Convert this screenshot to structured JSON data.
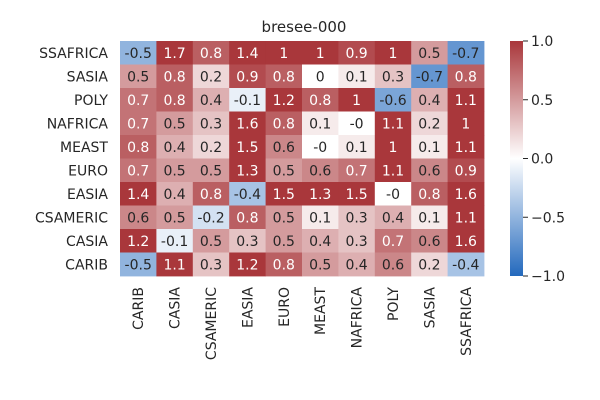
{
  "chart_data": {
    "type": "heatmap",
    "title": "bresee-000",
    "xlabel": "",
    "ylabel": "",
    "rows": [
      "SSAFRICA",
      "SASIA",
      "POLY",
      "NAFRICA",
      "MEAST",
      "EURO",
      "EASIA",
      "CSAMERIC",
      "CASIA",
      "CARIB"
    ],
    "columns": [
      "CARIB",
      "CASIA",
      "CSAMERIC",
      "EASIA",
      "EURO",
      "MEAST",
      "NAFRICA",
      "POLY",
      "SASIA",
      "SSAFRICA"
    ],
    "values": [
      [
        -0.5,
        1.7,
        0.8,
        1.4,
        1,
        1,
        0.9,
        1,
        0.5,
        -0.7
      ],
      [
        0.5,
        0.8,
        0.2,
        0.9,
        0.8,
        0,
        0.1,
        0.3,
        -0.7,
        0.8
      ],
      [
        0.7,
        0.8,
        0.4,
        -0.1,
        1.2,
        0.8,
        1,
        -0.6,
        0.4,
        1.1
      ],
      [
        0.7,
        0.5,
        0.3,
        1.6,
        0.8,
        0.1,
        "-0",
        1.1,
        0.2,
        1
      ],
      [
        0.8,
        0.4,
        0.2,
        1.5,
        0.6,
        "-0",
        0.1,
        1,
        0.1,
        1.1
      ],
      [
        0.7,
        0.5,
        0.5,
        1.3,
        0.5,
        0.6,
        0.7,
        1.1,
        0.6,
        0.9
      ],
      [
        1.4,
        0.4,
        0.8,
        -0.4,
        1.5,
        1.3,
        1.5,
        "-0",
        0.8,
        1.6
      ],
      [
        0.6,
        0.5,
        -0.2,
        0.8,
        0.5,
        0.1,
        0.3,
        0.4,
        0.1,
        1.1
      ],
      [
        1.2,
        -0.1,
        0.5,
        0.3,
        0.5,
        0.4,
        0.3,
        0.7,
        0.6,
        1.6
      ],
      [
        -0.5,
        1.1,
        0.3,
        1.2,
        0.8,
        0.5,
        0.4,
        0.6,
        0.2,
        -0.4
      ]
    ],
    "colorbar": {
      "range": [
        -1.0,
        1.0
      ],
      "ticks": [
        1.0,
        0.5,
        0.0,
        -0.5,
        -1.0
      ],
      "tick_labels": [
        "1.0",
        "0.5",
        "0.0",
        "−0.5",
        "−1.0"
      ],
      "colormap": "vlag",
      "low_color": "#2369bd",
      "mid_color": "#ffffff",
      "high_color": "#a9373b"
    },
    "grid": false
  }
}
